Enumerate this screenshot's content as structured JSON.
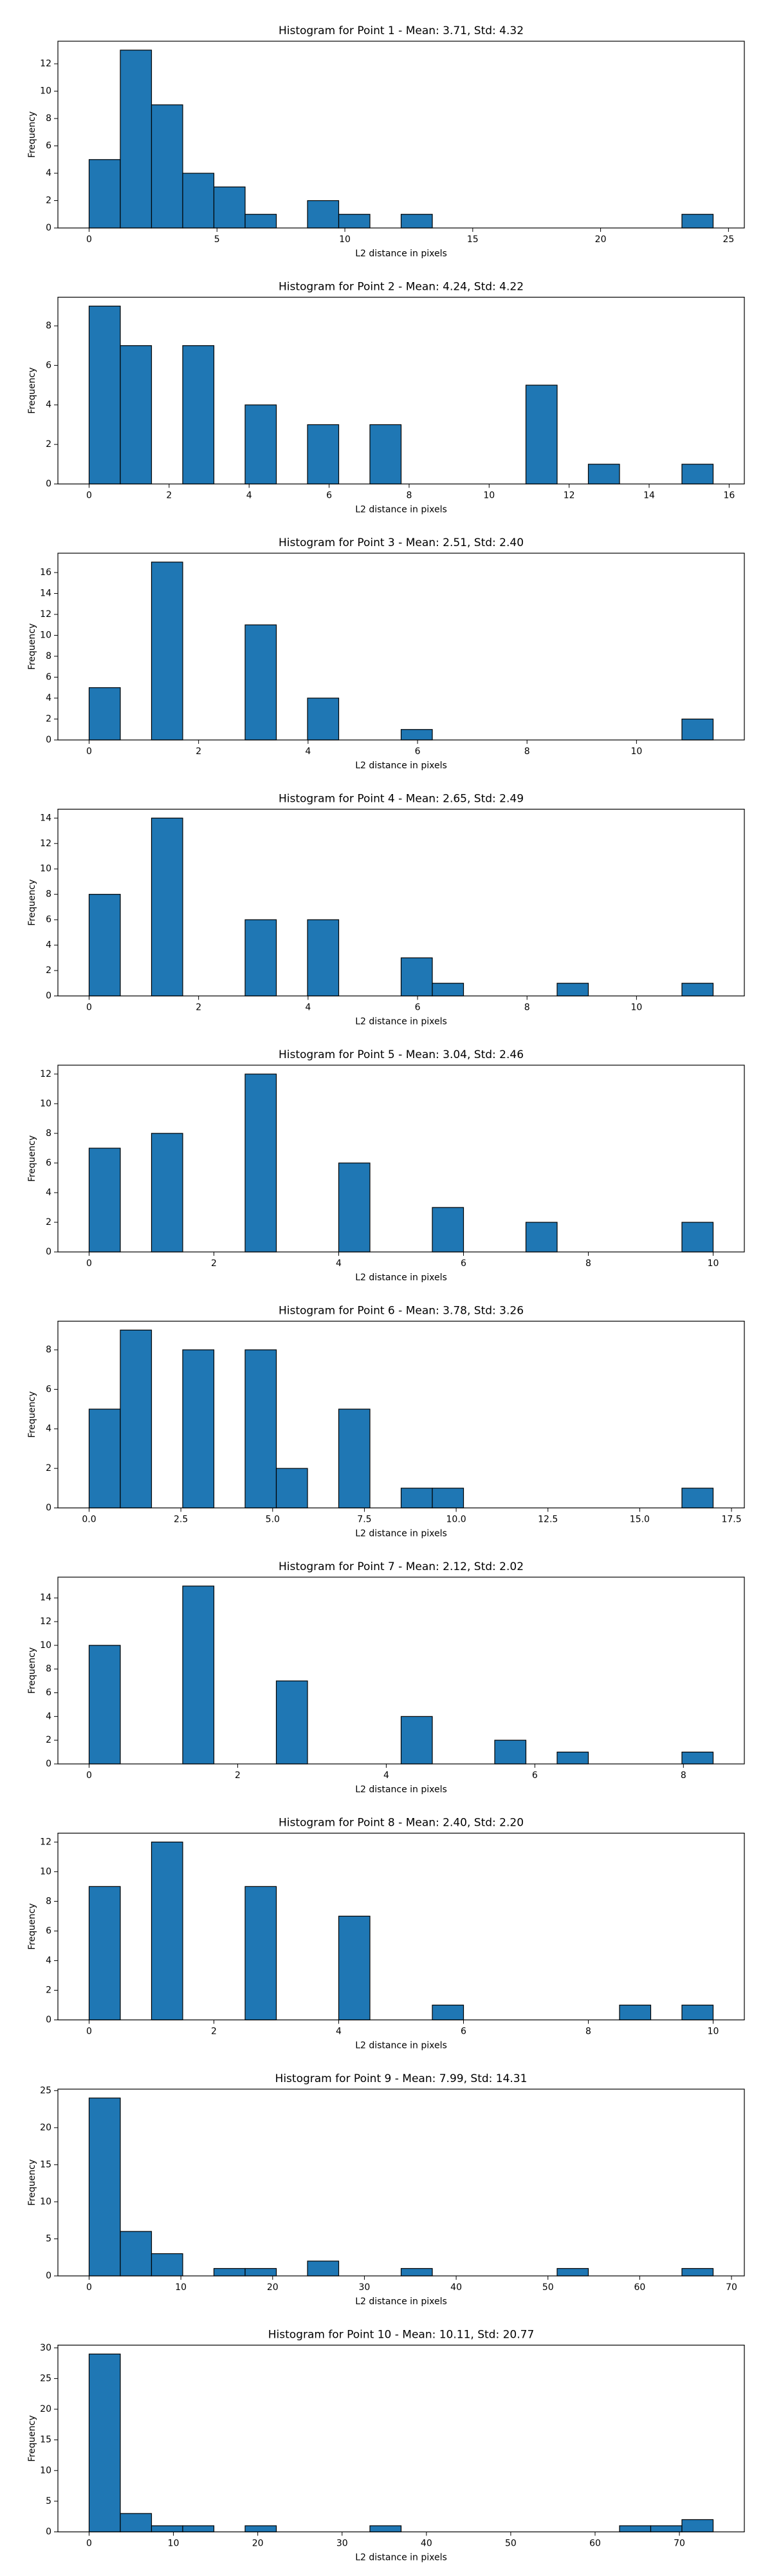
{
  "chart_data": [
    {
      "type": "histogram",
      "title": "Histogram for Point 1 - Mean: 3.71, Std: 4.32",
      "xlabel": "L2 distance in pixels",
      "ylabel": "Frequency",
      "color": "#1f77b4",
      "edgecolor": "#000000",
      "bins": [
        0,
        1.22,
        2.44,
        3.66,
        4.88,
        6.1,
        7.32,
        8.54,
        9.76,
        10.98,
        12.2,
        13.42,
        14.64,
        15.86,
        17.08,
        18.3,
        19.52,
        20.74,
        21.96,
        23.18,
        24.4
      ],
      "values": [
        5,
        13,
        9,
        4,
        3,
        1,
        0,
        2,
        1,
        0,
        1,
        0,
        0,
        0,
        0,
        0,
        0,
        0,
        0,
        1
      ],
      "xlim": [
        -1.22,
        25.62
      ],
      "xticks": [
        0,
        5,
        10,
        15,
        20,
        25
      ],
      "ylim": [
        0,
        13.65
      ],
      "yticks": [
        0,
        2,
        4,
        6,
        8,
        10,
        12
      ]
    },
    {
      "type": "histogram",
      "title": "Histogram for Point 2 - Mean: 4.24, Std: 4.22",
      "xlabel": "L2 distance in pixels",
      "ylabel": "Frequency",
      "color": "#1f77b4",
      "edgecolor": "#000000",
      "bins": [
        0,
        0.78,
        1.56,
        2.34,
        3.12,
        3.9,
        4.68,
        5.46,
        6.24,
        7.02,
        7.8,
        8.58,
        9.36,
        10.14,
        10.92,
        11.7,
        12.48,
        13.26,
        14.04,
        14.82,
        15.6
      ],
      "values": [
        9,
        7,
        0,
        7,
        0,
        4,
        0,
        3,
        0,
        3,
        0,
        0,
        0,
        0,
        5,
        0,
        1,
        0,
        0,
        1
      ],
      "xlim": [
        -0.78,
        16.38
      ],
      "xticks": [
        0,
        2,
        4,
        6,
        8,
        10,
        12,
        14,
        16
      ],
      "ylim": [
        0,
        9.45
      ],
      "yticks": [
        0,
        2,
        4,
        6,
        8
      ]
    },
    {
      "type": "histogram",
      "title": "Histogram for Point 3 - Mean: 2.51, Std: 2.40",
      "xlabel": "L2 distance in pixels",
      "ylabel": "Frequency",
      "color": "#1f77b4",
      "edgecolor": "#000000",
      "bins": [
        0,
        0.57,
        1.14,
        1.71,
        2.28,
        2.85,
        3.42,
        3.99,
        4.56,
        5.13,
        5.7,
        6.27,
        6.84,
        7.41,
        7.98,
        8.55,
        9.12,
        9.69,
        10.26,
        10.83,
        11.4
      ],
      "values": [
        5,
        0,
        17,
        0,
        0,
        11,
        0,
        4,
        0,
        0,
        1,
        0,
        0,
        0,
        0,
        0,
        0,
        0,
        0,
        2
      ],
      "xlim": [
        -0.57,
        11.97
      ],
      "xticks": [
        0,
        2,
        4,
        6,
        8,
        10
      ],
      "ylim": [
        0,
        17.85
      ],
      "yticks": [
        0,
        2,
        4,
        6,
        8,
        10,
        12,
        14,
        16
      ]
    },
    {
      "type": "histogram",
      "title": "Histogram for Point 4 - Mean: 2.65, Std: 2.49",
      "xlabel": "L2 distance in pixels",
      "ylabel": "Frequency",
      "color": "#1f77b4",
      "edgecolor": "#000000",
      "bins": [
        0,
        0.57,
        1.14,
        1.71,
        2.28,
        2.85,
        3.42,
        3.99,
        4.56,
        5.13,
        5.7,
        6.27,
        6.84,
        7.41,
        7.98,
        8.55,
        9.12,
        9.69,
        10.26,
        10.83,
        11.4
      ],
      "values": [
        8,
        0,
        14,
        0,
        0,
        6,
        0,
        6,
        0,
        0,
        3,
        1,
        0,
        0,
        0,
        1,
        0,
        0,
        0,
        1
      ],
      "xlim": [
        -0.57,
        11.97
      ],
      "xticks": [
        0,
        2,
        4,
        6,
        8,
        10
      ],
      "ylim": [
        0,
        14.7
      ],
      "yticks": [
        0,
        2,
        4,
        6,
        8,
        10,
        12,
        14
      ]
    },
    {
      "type": "histogram",
      "title": "Histogram for Point 5 - Mean: 3.04, Std: 2.46",
      "xlabel": "L2 distance in pixels",
      "ylabel": "Frequency",
      "color": "#1f77b4",
      "edgecolor": "#000000",
      "bins": [
        0,
        0.5,
        1,
        1.5,
        2,
        2.5,
        3,
        3.5,
        4,
        4.5,
        5,
        5.5,
        6,
        6.5,
        7,
        7.5,
        8,
        8.5,
        9,
        9.5,
        10
      ],
      "values": [
        7,
        0,
        8,
        0,
        0,
        12,
        0,
        0,
        6,
        0,
        0,
        3,
        0,
        0,
        2,
        0,
        0,
        0,
        0,
        2
      ],
      "xlim": [
        -0.5,
        10.5
      ],
      "xticks": [
        0,
        2,
        4,
        6,
        8,
        10
      ],
      "ylim": [
        0,
        12.6
      ],
      "yticks": [
        0,
        2,
        4,
        6,
        8,
        10,
        12
      ]
    },
    {
      "type": "histogram",
      "title": "Histogram for Point 6 - Mean: 3.78, Std: 3.26",
      "xlabel": "L2 distance in pixels",
      "ylabel": "Frequency",
      "color": "#1f77b4",
      "edgecolor": "#000000",
      "bins": [
        0,
        0.85,
        1.7,
        2.55,
        3.4,
        4.25,
        5.1,
        5.95,
        6.8,
        7.65,
        8.5,
        9.35,
        10.2,
        11.05,
        11.9,
        12.75,
        13.6,
        14.45,
        15.3,
        16.15,
        17
      ],
      "values": [
        5,
        9,
        0,
        8,
        0,
        8,
        2,
        0,
        5,
        0,
        1,
        1,
        0,
        0,
        0,
        0,
        0,
        0,
        0,
        1
      ],
      "xlim": [
        -0.85,
        17.85
      ],
      "xticks": [
        {
          "value": 0,
          "label": "0.0"
        },
        2.5,
        {
          "value": 5,
          "label": "5.0"
        },
        7.5,
        {
          "value": 10,
          "label": "10.0"
        },
        12.5,
        {
          "value": 15,
          "label": "15.0"
        },
        17.5
      ],
      "ylim": [
        0,
        9.45
      ],
      "yticks": [
        0,
        2,
        4,
        6,
        8
      ]
    },
    {
      "type": "histogram",
      "title": "Histogram for Point 7 - Mean: 2.12, Std: 2.02",
      "xlabel": "L2 distance in pixels",
      "ylabel": "Frequency",
      "color": "#1f77b4",
      "edgecolor": "#000000",
      "bins": [
        0,
        0.42,
        0.84,
        1.26,
        1.68,
        2.1,
        2.52,
        2.94,
        3.36,
        3.78,
        4.2,
        4.62,
        5.04,
        5.46,
        5.88,
        6.3,
        6.72,
        7.14,
        7.56,
        7.98,
        8.4
      ],
      "values": [
        10,
        0,
        0,
        15,
        0,
        0,
        7,
        0,
        0,
        0,
        4,
        0,
        0,
        2,
        0,
        1,
        0,
        0,
        0,
        1
      ],
      "xlim": [
        -0.42,
        8.82
      ],
      "xticks": [
        0,
        2,
        4,
        6,
        8
      ],
      "ylim": [
        0,
        15.75
      ],
      "yticks": [
        0,
        2,
        4,
        6,
        8,
        10,
        12,
        14
      ]
    },
    {
      "type": "histogram",
      "title": "Histogram for Point 8 - Mean: 2.40, Std: 2.20",
      "xlabel": "L2 distance in pixels",
      "ylabel": "Frequency",
      "color": "#1f77b4",
      "edgecolor": "#000000",
      "bins": [
        0,
        0.5,
        1,
        1.5,
        2,
        2.5,
        3,
        3.5,
        4,
        4.5,
        5,
        5.5,
        6,
        6.5,
        7,
        7.5,
        8,
        8.5,
        9,
        9.5,
        10
      ],
      "values": [
        9,
        0,
        12,
        0,
        0,
        9,
        0,
        0,
        7,
        0,
        0,
        1,
        0,
        0,
        0,
        0,
        0,
        1,
        0,
        1
      ],
      "xlim": [
        -0.5,
        10.5
      ],
      "xticks": [
        0,
        2,
        4,
        6,
        8,
        10
      ],
      "ylim": [
        0,
        12.6
      ],
      "yticks": [
        0,
        2,
        4,
        6,
        8,
        10,
        12
      ]
    },
    {
      "type": "histogram",
      "title": "Histogram for Point 9 - Mean: 7.99, Std: 14.31",
      "xlabel": "L2 distance in pixels",
      "ylabel": "Frequency",
      "color": "#1f77b4",
      "edgecolor": "#000000",
      "bins": [
        0,
        3.4,
        6.8,
        10.2,
        13.6,
        17,
        20.4,
        23.8,
        27.2,
        30.6,
        34,
        37.4,
        40.8,
        44.2,
        47.6,
        51,
        54.4,
        57.8,
        61.2,
        64.6,
        68
      ],
      "values": [
        24,
        6,
        3,
        0,
        1,
        1,
        0,
        2,
        0,
        0,
        1,
        0,
        0,
        0,
        0,
        1,
        0,
        0,
        0,
        1
      ],
      "xlim": [
        -3.4,
        71.4
      ],
      "xticks": [
        0,
        10,
        20,
        30,
        40,
        50,
        60,
        70
      ],
      "ylim": [
        0,
        25.2
      ],
      "yticks": [
        0,
        5,
        10,
        15,
        20,
        25
      ]
    },
    {
      "type": "histogram",
      "title": "Histogram for Point 10 - Mean: 10.11, Std: 20.77",
      "xlabel": "L2 distance in pixels",
      "ylabel": "Frequency",
      "color": "#1f77b4",
      "edgecolor": "#000000",
      "bins": [
        0,
        3.7,
        7.4,
        11.1,
        14.8,
        18.5,
        22.2,
        25.9,
        29.6,
        33.3,
        37,
        40.7,
        44.4,
        48.1,
        51.8,
        55.5,
        59.2,
        62.9,
        66.6,
        70.3,
        74
      ],
      "values": [
        29,
        3,
        1,
        1,
        0,
        1,
        0,
        0,
        0,
        1,
        0,
        0,
        0,
        0,
        0,
        0,
        0,
        1,
        1,
        2
      ],
      "xlim": [
        -3.7,
        77.7
      ],
      "xticks": [
        0,
        10,
        20,
        30,
        40,
        50,
        60,
        70
      ],
      "ylim": [
        0,
        30.45
      ],
      "yticks": [
        0,
        5,
        10,
        15,
        20,
        25,
        30
      ]
    }
  ]
}
